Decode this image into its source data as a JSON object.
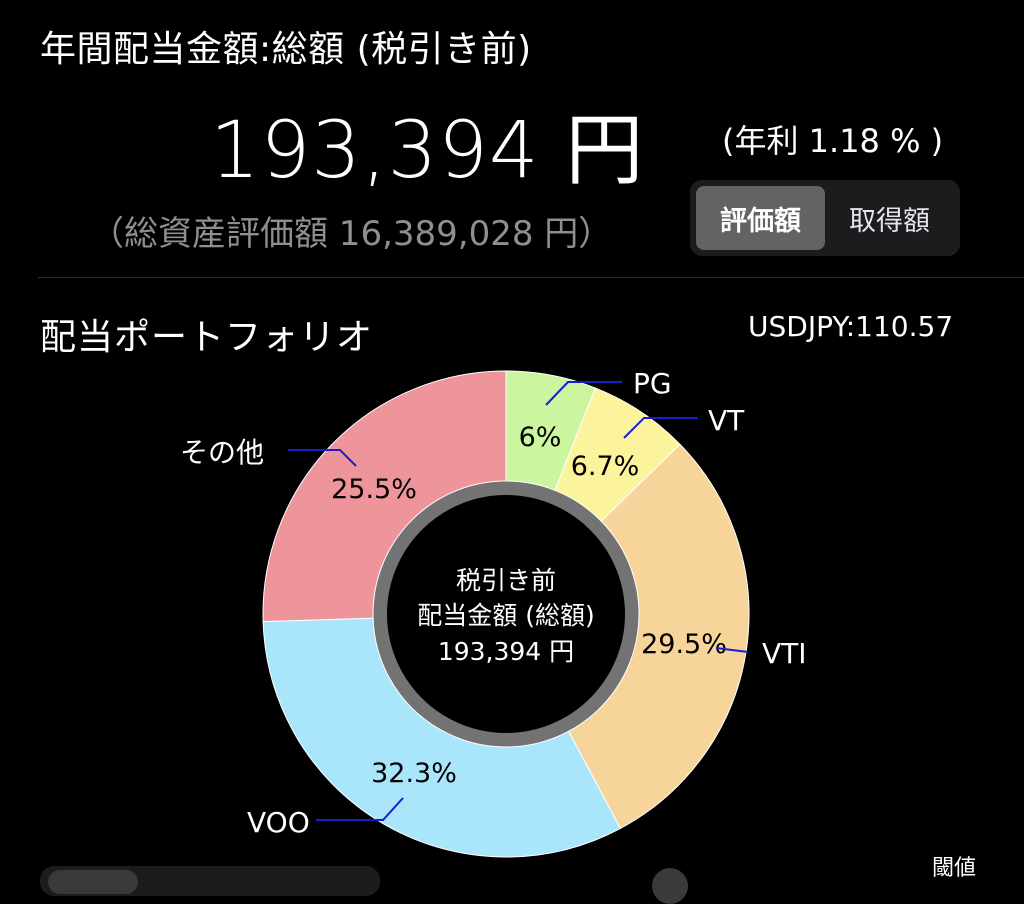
{
  "header": {
    "title": "年間配当金額:総額 (税引き前)",
    "amount": "193,394 円",
    "yield": "(年利 1.18 % )",
    "total_assets": "（総資産評価額 16,389,028 円）"
  },
  "toggle": {
    "options": [
      "評価額",
      "取得額"
    ],
    "selected": "評価額"
  },
  "portfolio": {
    "title": "配当ポートフォリオ",
    "fx_rate": "USDJPY:110.57"
  },
  "bottom": {
    "threshold_label": "閾値"
  },
  "colors": {
    "PG": "#ccf5a0",
    "VT": "#fbf49c",
    "VTI": "#f6d49a",
    "VOO": "#a9e6fb",
    "その他": "#ee959c",
    "leader": "#1c1ccf"
  },
  "chart_data": {
    "type": "pie",
    "variant": "donut",
    "categories": [
      "PG",
      "VT",
      "VTI",
      "VOO",
      "その他"
    ],
    "values": [
      6,
      6.7,
      29.5,
      32.3,
      25.5
    ],
    "value_labels": [
      "6%",
      "6.7%",
      "29.5%",
      "32.3%",
      "25.5%"
    ],
    "center_text": [
      "税引き前",
      "配当金額 (総額)",
      "193,394 円"
    ]
  }
}
